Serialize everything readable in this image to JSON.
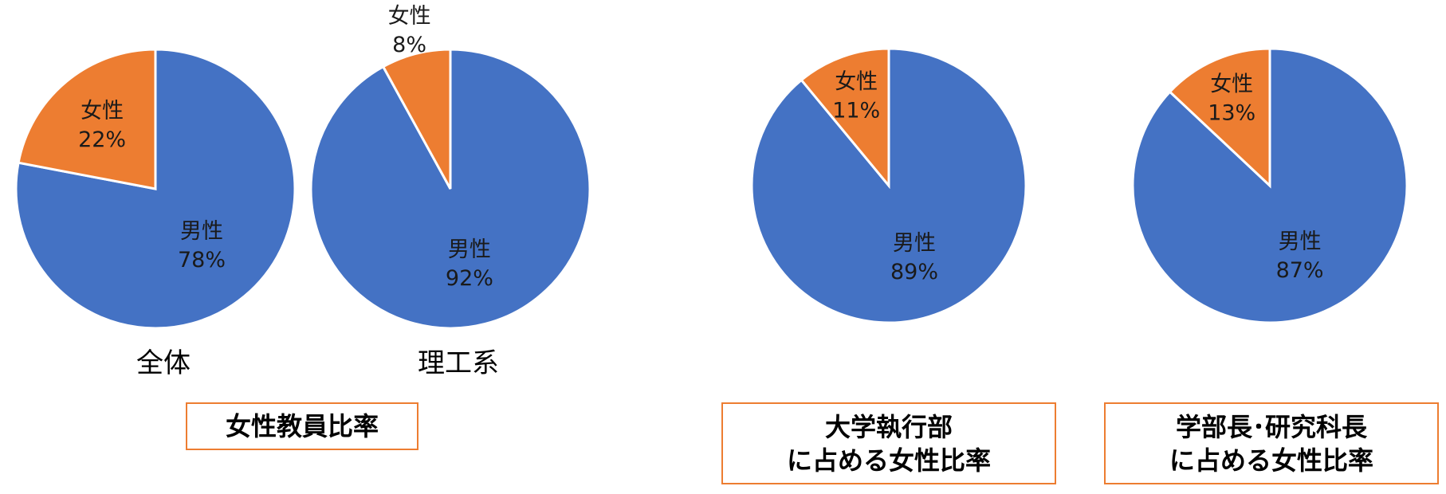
{
  "chart_data": [
    {
      "type": "pie",
      "subtitle": "全体",
      "slices": [
        {
          "label": "男性",
          "value": 78,
          "value_label": "78%"
        },
        {
          "label": "女性",
          "value": 22,
          "value_label": "22%"
        }
      ]
    },
    {
      "type": "pie",
      "subtitle": "理工系",
      "slices": [
        {
          "label": "男性",
          "value": 92,
          "value_label": "92%"
        },
        {
          "label": "女性",
          "value": 8,
          "value_label": "8%"
        }
      ]
    },
    {
      "type": "pie",
      "subtitle": "",
      "slices": [
        {
          "label": "男性",
          "value": 89,
          "value_label": "89%"
        },
        {
          "label": "女性",
          "value": 11,
          "value_label": "11%"
        }
      ]
    },
    {
      "type": "pie",
      "subtitle": "",
      "slices": [
        {
          "label": "男性",
          "value": 87,
          "value_label": "87%"
        },
        {
          "label": "女性",
          "value": 13,
          "value_label": "13%"
        }
      ]
    }
  ],
  "colors": {
    "male": "#4472C4",
    "female": "#ED7D31",
    "box_border": "#ED7D31"
  },
  "captions": {
    "faculty": "女性教員比率",
    "executive": [
      "大学執行部",
      "に占める女性比率"
    ],
    "deans": [
      "学部長･研究科長",
      "に占める女性比率"
    ]
  }
}
